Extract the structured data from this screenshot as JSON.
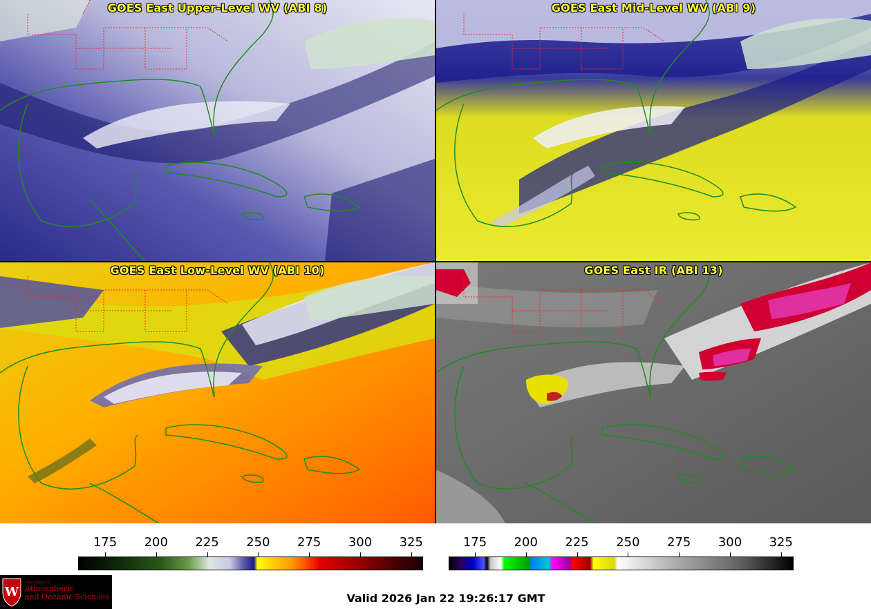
{
  "panels": [
    {
      "id": "p1",
      "title": "GOES East Upper-Level WV (ABI 8)",
      "palette": "upper-wv"
    },
    {
      "id": "p2",
      "title": "GOES East Mid-Level WV (ABI 9)",
      "palette": "mid-wv"
    },
    {
      "id": "p3",
      "title": "GOES East Low-Level WV (ABI 10)",
      "palette": "low-wv"
    },
    {
      "id": "p4",
      "title": "GOES East IR (ABI 13)",
      "palette": "ir"
    }
  ],
  "colorbars": {
    "wv": {
      "ticks": [
        "175",
        "200",
        "225",
        "250",
        "275",
        "300",
        "325"
      ]
    },
    "ir": {
      "ticks": [
        "175",
        "200",
        "225",
        "250",
        "275",
        "300",
        "325"
      ]
    }
  },
  "logo": {
    "dept": "Department of",
    "line1": "Atmospheric",
    "line2": "and Oceanic Sciences"
  },
  "valid_time": "Valid 2026 Jan 22 19:26:17 GMT",
  "colors": {
    "coastline": "#1e8c1e",
    "state_border": "#ff2020",
    "title_text": "#ffff33"
  }
}
